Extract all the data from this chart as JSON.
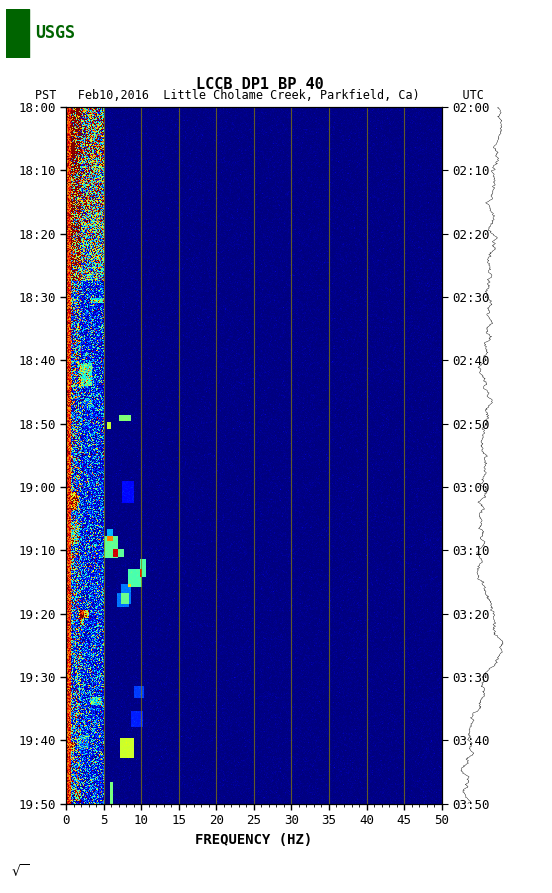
{
  "title_line1": "LCCB DP1 BP 40",
  "title_line2": "PST   Feb10,2016  Little Cholame Creek, Parkfield, Ca)      UTC",
  "xlabel": "FREQUENCY (HZ)",
  "freq_min": 0,
  "freq_max": 50,
  "time_start_label": "18:00",
  "time_end_label": "19:50",
  "right_time_start": "02:00",
  "right_time_end": "03:50",
  "ytick_labels_left": [
    "18:00",
    "18:10",
    "18:20",
    "18:30",
    "18:40",
    "18:50",
    "19:00",
    "19:10",
    "19:20",
    "19:30",
    "19:40",
    "19:50"
  ],
  "ytick_labels_right": [
    "02:00",
    "02:10",
    "02:20",
    "02:30",
    "02:40",
    "02:50",
    "03:00",
    "03:10",
    "03:20",
    "03:30",
    "03:40",
    "03:50"
  ],
  "xtick_positions": [
    0,
    5,
    10,
    15,
    20,
    25,
    30,
    35,
    40,
    45,
    50
  ],
  "vline_positions": [
    5,
    10,
    15,
    20,
    25,
    30,
    35,
    40,
    45
  ],
  "background_color": "#ffffff",
  "fig_width": 5.52,
  "fig_height": 8.93,
  "usgs_logo_color": "#006400",
  "spectrogram_cmap": "jet",
  "n_time": 1200,
  "n_freq": 500,
  "seed": 42
}
